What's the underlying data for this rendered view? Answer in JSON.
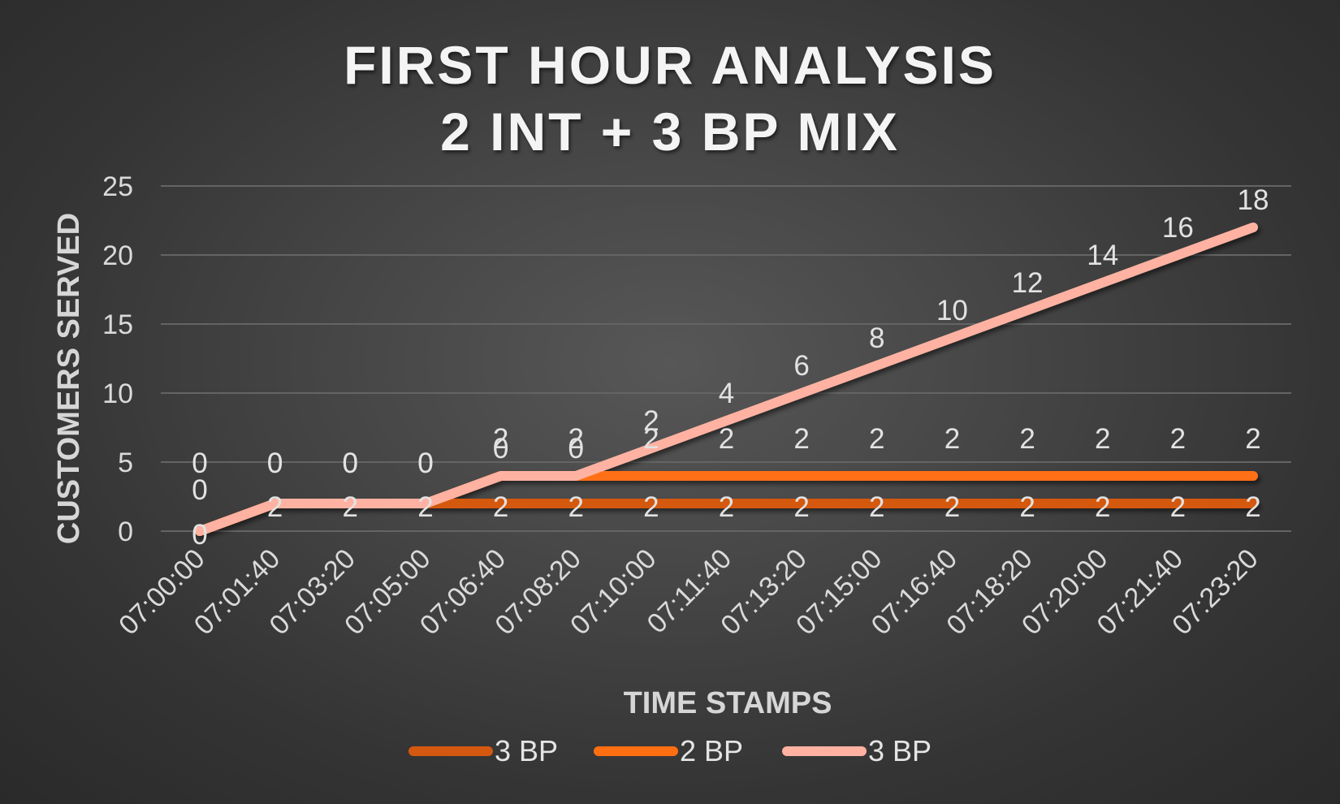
{
  "chart_data": {
    "type": "line",
    "title": [
      "FIRST HOUR ANALYSIS",
      "2 INT + 3 BP MIX"
    ],
    "xlabel": "TIME STAMPS",
    "ylabel": "CUSTOMERS SERVED",
    "ylim": [
      0,
      25
    ],
    "yticks": [
      0,
      5,
      10,
      15,
      20,
      25
    ],
    "grid": true,
    "legend_position": "bottom",
    "categories": [
      "07:00:00",
      "07:01:40",
      "07:03:20",
      "07:05:00",
      "07:06:40",
      "07:08:20",
      "07:10:00",
      "07:11:40",
      "07:13:20",
      "07:15:00",
      "07:16:40",
      "07:18:20",
      "07:20:00",
      "07:21:40",
      "07:23:20"
    ],
    "series": [
      {
        "name": "3 BP",
        "color": "#d4580f",
        "values": [
          0,
          2,
          2,
          2,
          2,
          2,
          2,
          2,
          2,
          2,
          2,
          2,
          2,
          2,
          2
        ],
        "labels": [
          "0",
          "2",
          "2",
          "2",
          "2",
          "2",
          "2",
          "2",
          "2",
          "2",
          "2",
          "2",
          "2",
          "2",
          "2"
        ]
      },
      {
        "name": "2 BP",
        "color": "#ff6f12",
        "values": [
          0,
          2,
          2,
          2,
          4,
          4,
          4,
          4,
          4,
          4,
          4,
          4,
          4,
          4,
          4
        ],
        "labels": [
          "0",
          "0",
          "0",
          "0",
          "2",
          "2",
          "2",
          "2",
          "2",
          "2",
          "2",
          "2",
          "2",
          "2",
          "2"
        ]
      },
      {
        "name": "3 BP",
        "color": "#ffb2a2",
        "values": [
          0,
          2,
          2,
          2,
          4,
          4,
          6,
          8,
          10,
          12,
          14,
          16,
          18,
          20,
          22
        ],
        "labels": [
          "0",
          "0",
          "0",
          "0",
          "0",
          "0",
          "2",
          "4",
          "6",
          "8",
          "10",
          "12",
          "14",
          "16",
          "18"
        ]
      }
    ]
  }
}
